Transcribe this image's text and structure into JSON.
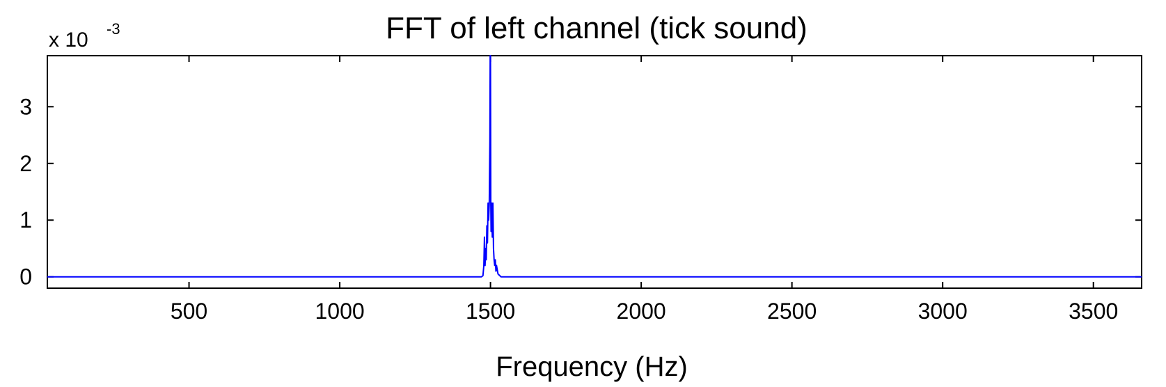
{
  "chart_data": {
    "type": "line",
    "title": "FFT of left channel (tick sound)",
    "xlabel": "Frequency (Hz)",
    "ylabel": "",
    "y_exponent_label": "x 10",
    "y_exponent_power": "-3",
    "xlim": [
      30,
      3660
    ],
    "ylim": [
      -0.0002,
      0.0039
    ],
    "xticks": [
      500,
      1000,
      1500,
      2000,
      2500,
      3000,
      3500
    ],
    "xtick_labels": [
      "500",
      "1000",
      "1500",
      "2000",
      "2500",
      "3000",
      "3500"
    ],
    "yticks": [
      0,
      0.001,
      0.002,
      0.003
    ],
    "ytick_labels": [
      "0",
      "1",
      "2",
      "3"
    ],
    "grid": false,
    "line_color": "#0000ff",
    "series": [
      {
        "x": [
          30,
          1470,
          1475,
          1478,
          1480,
          1482,
          1484,
          1486,
          1488,
          1490,
          1492,
          1494,
          1496,
          1498,
          1499,
          1500,
          1501,
          1502,
          1504,
          1506,
          1508,
          1510,
          1512,
          1514,
          1516,
          1518,
          1520,
          1525,
          1535,
          3660
        ],
        "y": [
          0,
          0,
          2e-05,
          0.0002,
          0.0007,
          0.0002,
          0.0005,
          0.0003,
          0.0009,
          0.0006,
          0.0013,
          0.001,
          0.0013,
          0.0024,
          0.0039,
          0.0039,
          0.0013,
          0.0008,
          0.0013,
          0.0007,
          0.0013,
          0.0005,
          0.0003,
          0.0002,
          0.0003,
          0.0001,
          0.0002,
          5e-05,
          0,
          0
        ]
      }
    ]
  }
}
